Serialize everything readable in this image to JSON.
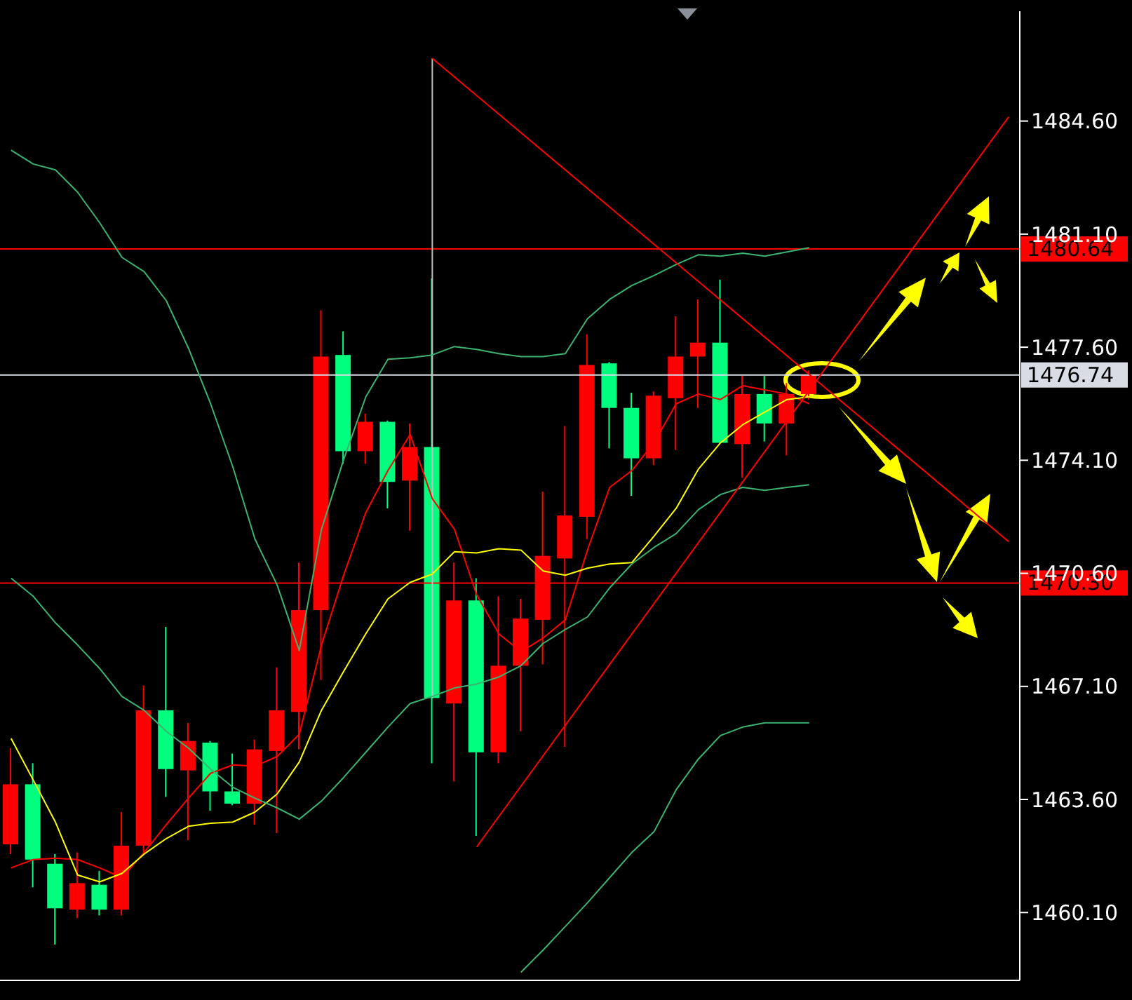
{
  "chart_data": {
    "type": "candlestick",
    "categories": [
      null,
      null,
      null,
      null,
      null,
      null,
      null,
      null,
      null,
      null,
      null,
      null,
      null,
      null,
      null,
      null,
      null,
      null,
      null,
      null,
      null,
      null,
      null,
      null,
      null,
      null,
      null,
      null,
      null,
      null,
      null,
      null,
      null,
      null,
      null,
      null,
      null,
      null,
      null,
      null,
      null,
      null,
      null,
      null,
      null,
      null
    ],
    "ohlc": [
      [
        1462.21,
        1465.19,
        1461.91,
        1464.07
      ],
      [
        1464.07,
        1464.72,
        1460.88,
        1461.74
      ],
      [
        1461.61,
        1461.91,
        1459.11,
        1460.23
      ],
      [
        1460.19,
        1461.96,
        1459.93,
        1461.01
      ],
      [
        1460.96,
        1461.39,
        1460.01,
        1460.19
      ],
      [
        1460.19,
        1463.21,
        1460.01,
        1462.17
      ],
      [
        1462.17,
        1467.13,
        1461.91,
        1466.36
      ],
      [
        1466.36,
        1468.94,
        1463.68,
        1464.54
      ],
      [
        1464.5,
        1465.97,
        1462.34,
        1465.41
      ],
      [
        1465.36,
        1465.41,
        1463.25,
        1463.85
      ],
      [
        1463.85,
        1465.02,
        1463.42,
        1463.47
      ],
      [
        1463.47,
        1465.45,
        1462.82,
        1465.15
      ],
      [
        1465.1,
        1467.69,
        1462.56,
        1466.36
      ],
      [
        1466.31,
        1470.93,
        1465.15,
        1469.46
      ],
      [
        1469.46,
        1478.74,
        1467.3,
        1477.31
      ],
      [
        1477.36,
        1478.09,
        1473.99,
        1474.38
      ],
      [
        1474.38,
        1475.54,
        1473.99,
        1475.29
      ],
      [
        1475.29,
        1475.33,
        1472.61,
        1473.43
      ],
      [
        1473.47,
        1475.24,
        1471.92,
        1474.51
      ],
      [
        1474.51,
        1479.73,
        1464.72,
        1466.74
      ],
      [
        1466.57,
        1470.93,
        1464.16,
        1469.76
      ],
      [
        1469.76,
        1470.45,
        1462.47,
        1465.06
      ],
      [
        1465.06,
        1469.89,
        1464.72,
        1467.74
      ],
      [
        1467.74,
        1469.81,
        1465.71,
        1469.2
      ],
      [
        1469.16,
        1473.13,
        1467.78,
        1471.14
      ],
      [
        1471.06,
        1475.16,
        1465.23,
        1472.39
      ],
      [
        1472.35,
        1478.0,
        1471.66,
        1477.05
      ],
      [
        1477.1,
        1477.14,
        1474.47,
        1475.72
      ],
      [
        1475.72,
        1476.19,
        1473.0,
        1474.16
      ],
      [
        1474.16,
        1476.23,
        1473.95,
        1476.1
      ],
      [
        1476.02,
        1478.56,
        1474.42,
        1477.31
      ],
      [
        1477.31,
        1479.08,
        1475.72,
        1477.74
      ],
      [
        1477.74,
        1479.69,
        1474.64,
        1474.64
      ],
      [
        1474.6,
        1476.71,
        1473.56,
        1476.15
      ],
      [
        1476.15,
        1476.71,
        1474.68,
        1475.24
      ],
      [
        1475.24,
        1476.49,
        1474.25,
        1476.15
      ],
      [
        1476.15,
        1476.88,
        1475.98,
        1476.74
      ],
      null,
      null,
      null,
      null,
      null,
      null,
      null,
      null,
      null
    ],
    "colors": [
      "#ff0000",
      "#00ff7f",
      "#00ff7f",
      "#ff0000",
      "#00ff7f",
      "#ff0000",
      "#ff0000",
      "#00ff7f",
      "#ff0000",
      "#00ff7f",
      "#00ff7f",
      "#ff0000",
      "#ff0000",
      "#ff0000",
      "#ff0000",
      "#00ff7f",
      "#ff0000",
      "#00ff7f",
      "#ff0000",
      "#00ff7f",
      "#ff0000",
      "#00ff7f",
      "#ff0000",
      "#ff0000",
      "#ff0000",
      "#ff0000",
      "#ff0000",
      "#00ff7f",
      "#00ff7f",
      "#ff0000",
      "#ff0000",
      "#ff0000",
      "#00ff7f",
      "#ff0000",
      "#00ff7f",
      "#ff0000",
      "#ff0000",
      null,
      null,
      null,
      null,
      null,
      null,
      null,
      null,
      null
    ],
    "series": [
      {
        "type": "line",
        "color": "#ff0000",
        "values": [
          1461.48,
          1461.74,
          1461.78,
          1461.74,
          1461.48,
          1461.18,
          1461.96,
          1462.82,
          1463.64,
          1464.41,
          1464.67,
          1464.63,
          1464.93,
          1465.62,
          1468.38,
          1470.54,
          1472.48,
          1473.78,
          1474.9,
          1472.91,
          1471.96,
          1469.94,
          1468.73,
          1468.17,
          1468.6,
          1469.16,
          1471.32,
          1473.26,
          1473.78,
          1474.64,
          1475.85,
          1476.15,
          1475.98,
          1476.41,
          1476.28,
          1476.15,
          1475.85,
          null,
          null,
          null,
          null,
          null,
          null,
          null,
          null,
          null
        ]
      },
      {
        "type": "line",
        "color": "#ffff00",
        "values": [
          1465.49,
          1464.2,
          1462.9,
          1461.26,
          1461.05,
          1461.31,
          1461.91,
          1462.39,
          1462.77,
          1462.86,
          1462.9,
          1463.21,
          1463.77,
          1464.76,
          1466.36,
          1467.56,
          1468.73,
          1469.81,
          1470.32,
          1470.58,
          1471.27,
          1471.23,
          1471.36,
          1471.32,
          1470.67,
          1470.54,
          1470.76,
          1470.89,
          1470.93,
          1471.75,
          1472.61,
          1473.82,
          1474.64,
          1475.2,
          1475.59,
          1475.98,
          1476.06,
          null,
          null,
          null,
          null,
          null,
          null,
          null,
          null,
          null
        ]
      },
      {
        "type": "line",
        "color": "#3cb371",
        "values": [
          1483.7,
          1483.27,
          1483.09,
          1482.4,
          1481.45,
          1480.38,
          1479.94,
          1479.04,
          1477.57,
          1475.85,
          1473.9,
          1471.66,
          1470.24,
          1468.21,
          1471.96,
          1474.12,
          1476.06,
          1477.23,
          1477.27,
          1477.36,
          1477.62,
          1477.53,
          1477.4,
          1477.31,
          1477.31,
          1477.4,
          1478.48,
          1479.08,
          1479.51,
          1479.82,
          1480.16,
          1480.46,
          1480.42,
          1480.51,
          1480.42,
          1480.55,
          1480.68,
          null,
          null,
          null,
          null,
          null,
          null,
          null,
          null,
          null
        ]
      },
      {
        "type": "line",
        "color": "#3cb371",
        "values": [
          1470.45,
          1469.89,
          1469.07,
          1468.38,
          1467.65,
          1466.79,
          1466.36,
          1465.71,
          1465.19,
          1464.54,
          1463.98,
          1463.64,
          1463.34,
          1462.99,
          1463.55,
          1464.28,
          1465.06,
          1465.84,
          1466.57,
          1466.79,
          1467.05,
          1467.17,
          1467.39,
          1467.74,
          1468.43,
          1468.86,
          1469.25,
          1470.15,
          1470.89,
          1471.4,
          1471.83,
          1472.57,
          1473.04,
          1473.26,
          1473.17,
          1473.26,
          1473.34,
          null,
          null,
          null,
          null,
          null,
          null,
          null,
          null,
          null
        ]
      },
      {
        "type": "line",
        "color": "#3cb371",
        "values": [
          null,
          null,
          null,
          null,
          null,
          null,
          null,
          null,
          null,
          null,
          null,
          null,
          null,
          null,
          null,
          null,
          null,
          null,
          null,
          null,
          null,
          null,
          null,
          1458.25,
          1458.94,
          1459.67,
          1460.4,
          1461.18,
          1461.96,
          1462.6,
          1463.9,
          1464.85,
          1465.58,
          1465.84,
          1465.97,
          1465.97,
          1465.97,
          null,
          null,
          null,
          null,
          null,
          null,
          null,
          null,
          null
        ]
      },
      {
        "type": "line",
        "color": "#ff0000",
        "values": [
          null,
          null,
          null,
          null,
          null,
          null,
          null,
          null,
          null,
          null,
          null,
          null,
          null,
          null,
          null,
          null,
          null,
          null,
          null,
          1486.54,
          null,
          null,
          null,
          null,
          null,
          null,
          null,
          null,
          null,
          null,
          null,
          null,
          null,
          null,
          null,
          null,
          null,
          null,
          null,
          null,
          null,
          null,
          null,
          null,
          null,
          1471.58
        ]
      },
      {
        "type": "line",
        "color": "#ff0000",
        "values": [
          null,
          null,
          null,
          null,
          null,
          null,
          null,
          null,
          null,
          null,
          null,
          null,
          null,
          null,
          null,
          null,
          null,
          null,
          null,
          null,
          null,
          1462.13,
          null,
          null,
          null,
          null,
          null,
          null,
          null,
          null,
          null,
          null,
          null,
          null,
          null,
          null,
          null,
          null,
          null,
          null,
          null,
          null,
          null,
          null,
          null,
          1484.73
        ]
      }
    ],
    "ylim": [
      1458.0,
      1488.0
    ],
    "yticks": [
      {
        "value": 1460.1,
        "label": "1460.10"
      },
      {
        "value": 1463.6,
        "label": "1463.60"
      },
      {
        "value": 1467.1,
        "label": "1467.10"
      },
      {
        "value": 1470.6,
        "label": "1470.60"
      },
      {
        "value": 1474.1,
        "label": "1474.10"
      },
      {
        "value": 1477.6,
        "label": "1477.60"
      },
      {
        "value": 1481.1,
        "label": "1481.10"
      },
      {
        "value": 1484.6,
        "label": "1484.60"
      }
    ],
    "ref_lines": [
      {
        "axis": "y",
        "value": 1480.64,
        "label": "1480.64",
        "color": "#ff0000"
      },
      {
        "axis": "y",
        "value": 1476.74,
        "label": "1476.74",
        "color": "#d8dce4"
      },
      {
        "axis": "y",
        "value": 1470.3,
        "label": "1470.30",
        "color": "#ff0000"
      }
    ],
    "tick_labels": "y"
  }
}
